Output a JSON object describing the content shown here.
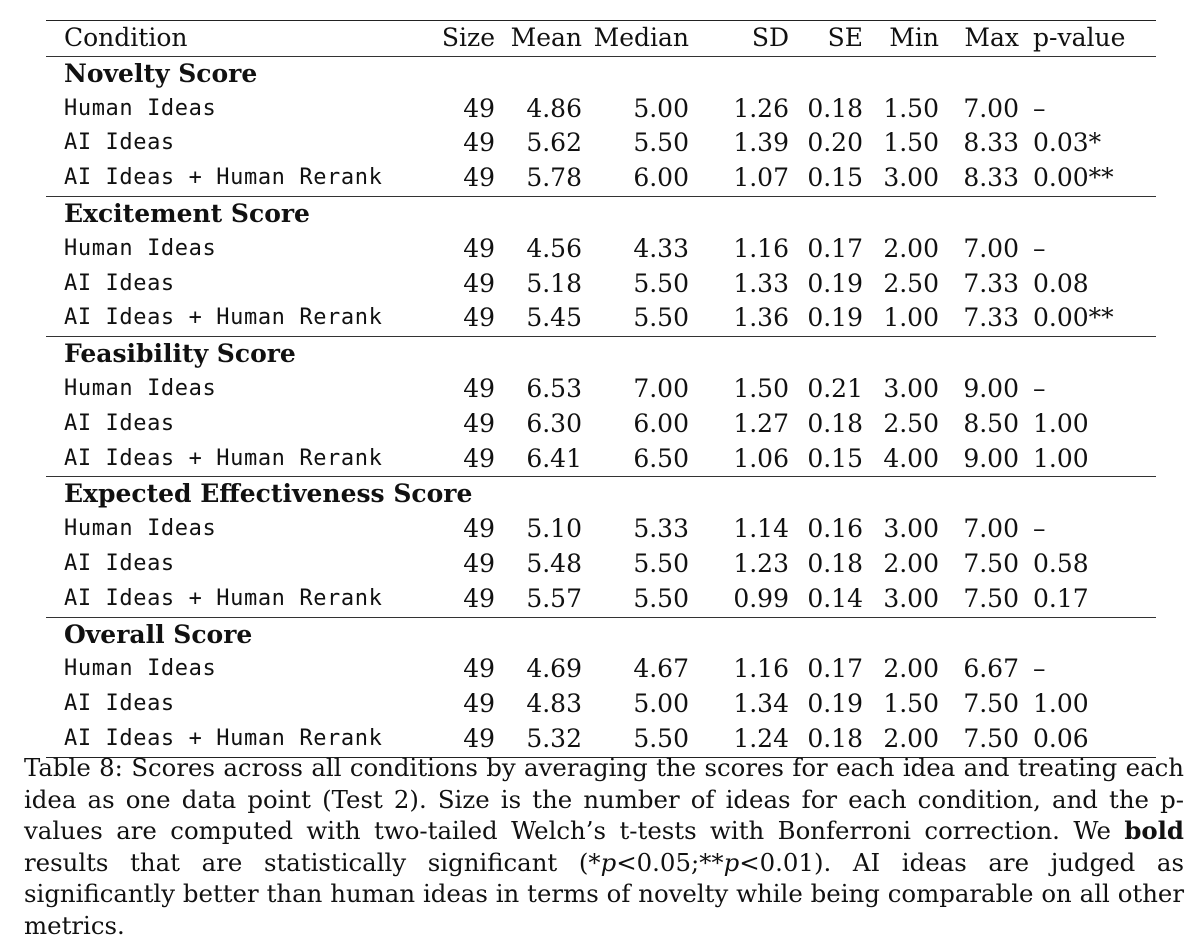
{
  "table": {
    "headers": [
      "Condition",
      "Size",
      "Mean",
      "Median",
      "SD",
      "SE",
      "Min",
      "Max",
      "p-value"
    ],
    "sections": [
      {
        "title": "Novelty Score",
        "rows": [
          {
            "condition": "Human Ideas",
            "size": "49",
            "mean": "4.86",
            "median": "5.00",
            "sd": "1.26",
            "se": "0.18",
            "min": "1.50",
            "max": "7.00",
            "p": "–",
            "p_bold": false
          },
          {
            "condition": "AI Ideas",
            "size": "49",
            "mean": "5.62",
            "median": "5.50",
            "sd": "1.39",
            "se": "0.20",
            "min": "1.50",
            "max": "8.33",
            "p": "0.03*",
            "p_bold": true
          },
          {
            "condition": "AI Ideas + Human Rerank",
            "size": "49",
            "mean": "5.78",
            "median": "6.00",
            "sd": "1.07",
            "se": "0.15",
            "min": "3.00",
            "max": "8.33",
            "p": "0.00**",
            "p_bold": true
          }
        ]
      },
      {
        "title": "Excitement Score",
        "rows": [
          {
            "condition": "Human Ideas",
            "size": "49",
            "mean": "4.56",
            "median": "4.33",
            "sd": "1.16",
            "se": "0.17",
            "min": "2.00",
            "max": "7.00",
            "p": "–",
            "p_bold": false
          },
          {
            "condition": "AI Ideas",
            "size": "49",
            "mean": "5.18",
            "median": "5.50",
            "sd": "1.33",
            "se": "0.19",
            "min": "2.50",
            "max": "7.33",
            "p": "0.08",
            "p_bold": false
          },
          {
            "condition": "AI Ideas + Human Rerank",
            "size": "49",
            "mean": "5.45",
            "median": "5.50",
            "sd": "1.36",
            "se": "0.19",
            "min": "1.00",
            "max": "7.33",
            "p": "0.00**",
            "p_bold": true
          }
        ]
      },
      {
        "title": "Feasibility Score",
        "rows": [
          {
            "condition": "Human Ideas",
            "size": "49",
            "mean": "6.53",
            "median": "7.00",
            "sd": "1.50",
            "se": "0.21",
            "min": "3.00",
            "max": "9.00",
            "p": "–",
            "p_bold": false
          },
          {
            "condition": "AI Ideas",
            "size": "49",
            "mean": "6.30",
            "median": "6.00",
            "sd": "1.27",
            "se": "0.18",
            "min": "2.50",
            "max": "8.50",
            "p": "1.00",
            "p_bold": false
          },
          {
            "condition": "AI Ideas + Human Rerank",
            "size": "49",
            "mean": "6.41",
            "median": "6.50",
            "sd": "1.06",
            "se": "0.15",
            "min": "4.00",
            "max": "9.00",
            "p": "1.00",
            "p_bold": false
          }
        ]
      },
      {
        "title": "Expected Effectiveness Score",
        "rows": [
          {
            "condition": "Human Ideas",
            "size": "49",
            "mean": "5.10",
            "median": "5.33",
            "sd": "1.14",
            "se": "0.16",
            "min": "3.00",
            "max": "7.00",
            "p": "–",
            "p_bold": false
          },
          {
            "condition": "AI Ideas",
            "size": "49",
            "mean": "5.48",
            "median": "5.50",
            "sd": "1.23",
            "se": "0.18",
            "min": "2.00",
            "max": "7.50",
            "p": "0.58",
            "p_bold": false
          },
          {
            "condition": "AI Ideas + Human Rerank",
            "size": "49",
            "mean": "5.57",
            "median": "5.50",
            "sd": "0.99",
            "se": "0.14",
            "min": "3.00",
            "max": "7.50",
            "p": "0.17",
            "p_bold": false
          }
        ]
      },
      {
        "title": "Overall Score",
        "rows": [
          {
            "condition": "Human Ideas",
            "size": "49",
            "mean": "4.69",
            "median": "4.67",
            "sd": "1.16",
            "se": "0.17",
            "min": "2.00",
            "max": "6.67",
            "p": "–",
            "p_bold": false
          },
          {
            "condition": "AI Ideas",
            "size": "49",
            "mean": "4.83",
            "median": "5.00",
            "sd": "1.34",
            "se": "0.19",
            "min": "1.50",
            "max": "7.50",
            "p": "1.00",
            "p_bold": false
          },
          {
            "condition": "AI Ideas + Human Rerank",
            "size": "49",
            "mean": "5.32",
            "median": "5.50",
            "sd": "1.24",
            "se": "0.18",
            "min": "2.00",
            "max": "7.50",
            "p": "0.06",
            "p_bold": false
          }
        ]
      }
    ]
  },
  "caption": {
    "label": "Table 8:",
    "text1": "Scores across all conditions by averaging the scores for each idea and treating each idea as one data point (Test 2). Size is the number of ideas for each condition, and the p-values are computed with two-tailed Welch’s t-tests with Bonferroni correction. We",
    "bold_word": "bold",
    "text2": "results that are statistically significant (",
    "sig1_star": "*",
    "sig1_var": "p",
    "sig1_rest": "<0.05;",
    "sig2_star": "**",
    "sig2_var": "p",
    "sig2_rest": "<0.01).",
    "text3": "AI ideas are judged as significantly better than human ideas in terms of novelty while being comparable on all other metrics."
  }
}
